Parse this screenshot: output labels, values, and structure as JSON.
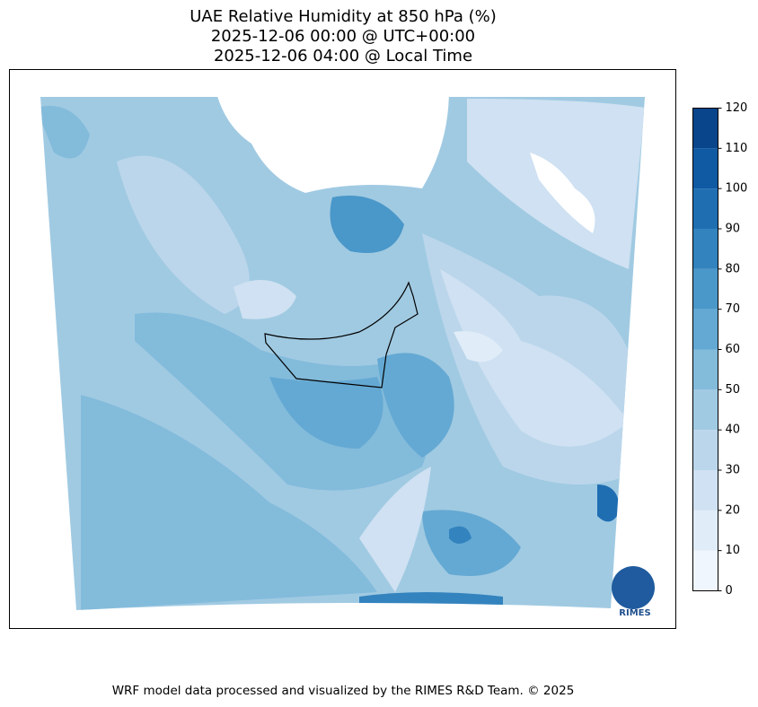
{
  "title": [
    "UAE Relative Humidity at 850 hPa (%)",
    "2025-12-06 00:00 @ UTC+00:00",
    "2025-12-06 04:00 @ Local Time"
  ],
  "colorbar": {
    "lim": [
      0,
      120
    ],
    "ticks": [
      0,
      10,
      20,
      30,
      40,
      50,
      60,
      70,
      80,
      90,
      100,
      110,
      120
    ],
    "colors": [
      "#f0f6fd",
      "#e0ecf8",
      "#cfe1f2",
      "#bbd6eb",
      "#a0cae2",
      "#83bbdb",
      "#64a9d3",
      "#4a97c9",
      "#3383be",
      "#1f6eb2",
      "#0f5aa3",
      "#08458a"
    ]
  },
  "logo_text": "RIMES",
  "footer": "WRF model data processed and visualized by the RIMES R&D Team. © 2025"
}
